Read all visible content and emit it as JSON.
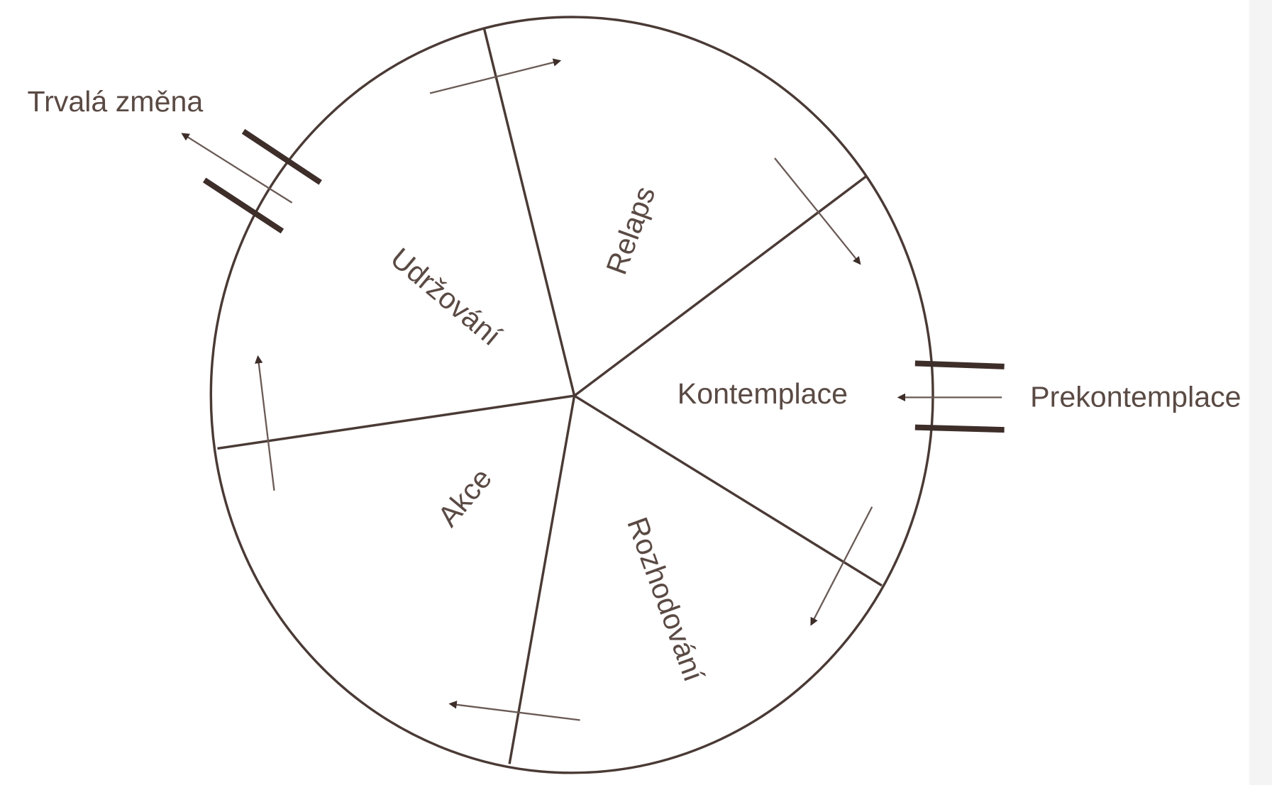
{
  "stages": {
    "relapse": "Relaps",
    "maintenance": "Udržování",
    "contemplation": "Kontemplace",
    "decision": "Rozhodování",
    "action": "Akce"
  },
  "exit_label": "Trvalá změna",
  "entry_label": "Prekontemplace"
}
